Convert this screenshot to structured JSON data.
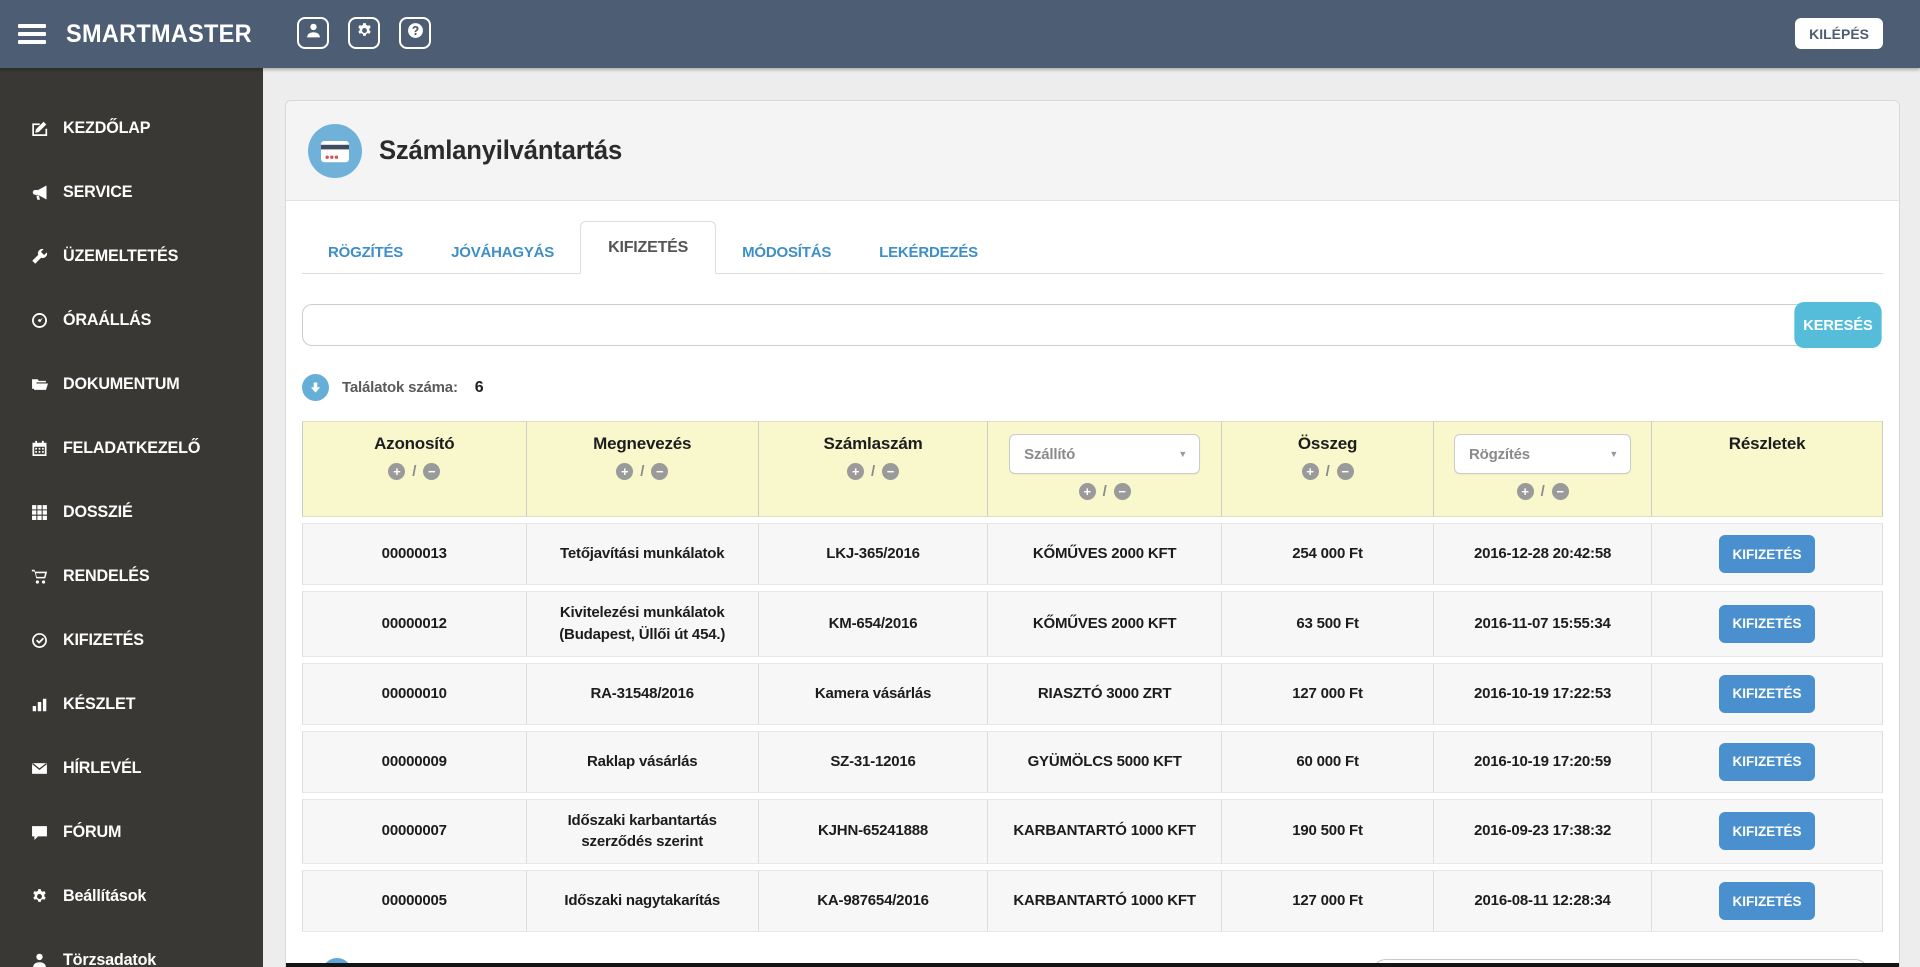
{
  "topbar": {
    "brand": "SMARTMASTER",
    "logout_label": "KILÉPÉS",
    "icon_buttons": [
      {
        "id": "user",
        "icon": "user"
      },
      {
        "id": "settings",
        "icon": "gear"
      },
      {
        "id": "help",
        "icon": "question-circle"
      }
    ]
  },
  "sidebar": {
    "items": [
      {
        "id": "kezdolap",
        "icon": "pencil-square",
        "label": "KEZDŐLAP"
      },
      {
        "id": "service",
        "icon": "bullhorn",
        "label": "SERVICE"
      },
      {
        "id": "uzemeltetes",
        "icon": "wrench",
        "label": "ÜZEMELTETÉS"
      },
      {
        "id": "oraallas",
        "icon": "tachometer",
        "label": "ÓRAÁLLÁS"
      },
      {
        "id": "dokumentum",
        "icon": "folder-open",
        "label": "DOKUMENTUM"
      },
      {
        "id": "feladatkezelo",
        "icon": "calendar",
        "label": "FELADATKEZELŐ"
      },
      {
        "id": "dosszie",
        "icon": "grid",
        "label": "DOSSZIÉ"
      },
      {
        "id": "rendeles",
        "icon": "cart",
        "label": "RENDELÉS"
      },
      {
        "id": "kifizetes",
        "icon": "check-circle",
        "label": "KIFIZETÉS"
      },
      {
        "id": "keszlet",
        "icon": "bar-chart",
        "label": "KÉSZLET"
      },
      {
        "id": "hirlevel",
        "icon": "envelope",
        "label": "HÍRLEVÉL"
      },
      {
        "id": "forum",
        "icon": "comment",
        "label": "FÓRUM"
      },
      {
        "id": "beallitasok",
        "icon": "gear",
        "label": "Beállítások"
      },
      {
        "id": "torzsadatok",
        "icon": "user",
        "label": "Törzsadatok"
      }
    ]
  },
  "page": {
    "title": "Számlanyilvántartás",
    "tabs": [
      {
        "id": "rogzites",
        "label": "RÖGZÍTÉS",
        "active": false
      },
      {
        "id": "jovahagyas",
        "label": "JÓVÁHAGYÁS",
        "active": false
      },
      {
        "id": "kifizetes",
        "label": "KIFIZETÉS",
        "active": true
      },
      {
        "id": "modositas",
        "label": "MÓDOSÍTÁS",
        "active": false
      },
      {
        "id": "lekerdezes",
        "label": "LEKÉRDEZÉS",
        "active": false
      }
    ],
    "search": {
      "value": "",
      "button_label": "KERESÉS"
    },
    "results": {
      "label": "Találatok száma:",
      "count": "6"
    }
  },
  "table": {
    "columns": [
      {
        "label": "Azonosító",
        "sortable": true
      },
      {
        "label": "Megnevezés",
        "sortable": true
      },
      {
        "label": "Számlaszám",
        "sortable": true
      },
      {
        "label": "Szállító",
        "sortable": true,
        "filter": true
      },
      {
        "label": "Összeg",
        "sortable": true
      },
      {
        "label": "Rögzítés",
        "sortable": true,
        "filter": true
      },
      {
        "label": "Részletek",
        "sortable": false
      }
    ],
    "action_label": "KIFIZETÉS",
    "rows": [
      [
        "00000013",
        "Tetőjavítási munkálatok",
        "LKJ-365/2016",
        "KŐMŰVES 2000 KFT",
        "254 000 Ft",
        "2016-12-28 20:42:58"
      ],
      [
        "00000012",
        "Kivitelezési munkálatok (Budapest, Üllői út 454.)",
        "KM-654/2016",
        "KŐMŰVES 2000 KFT",
        "63 500 Ft",
        "2016-11-07 15:55:34"
      ],
      [
        "00000010",
        "RA-31548/2016",
        "Kamera vásárlás",
        "RIASZTÓ 3000 ZRT",
        "127 000 Ft",
        "2016-10-19 17:22:53"
      ],
      [
        "00000009",
        "Raklap vásárlás",
        "SZ-31-12016",
        "GYÜMÖLCS 5000 KFT",
        "60 000 Ft",
        "2016-10-19 17:20:59"
      ],
      [
        "00000007",
        "Időszaki karbantartás szerződés szerint",
        "KJHN-65241888",
        "KARBANTARTÓ 1000 KFT",
        "190 500 Ft",
        "2016-09-23 17:38:32"
      ],
      [
        "00000005",
        "Időszaki nagytakarítás",
        "KA-987654/2016",
        "KARBANTARTÓ 1000 KFT",
        "127 000 Ft",
        "2016-08-11 12:28:34"
      ]
    ]
  },
  "glyphs": {
    "sort_plus": "+",
    "sort_minus": "−",
    "sort_separator": "/",
    "select_caret": "▼"
  },
  "colors": {
    "topbar": "#4d5d73",
    "sidebar": "#3a3835",
    "table_header": "#f8f8cc",
    "search_button": "#55bdda",
    "action_button": "#4a8fce",
    "tab_link": "#3e8fc7",
    "accent_circle": "#70b1d9"
  }
}
